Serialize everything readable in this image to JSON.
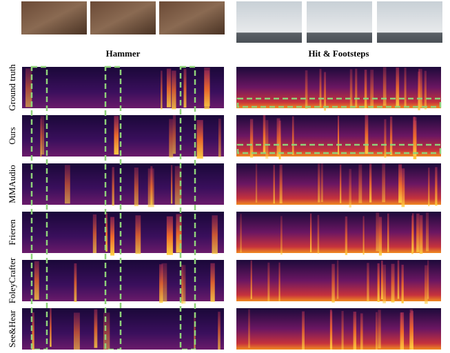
{
  "figure": {
    "columns": [
      {
        "title": "Hammer"
      },
      {
        "title": "Hit & Footsteps"
      }
    ],
    "rows": [
      {
        "label": "Ground truth"
      },
      {
        "label": "Ours"
      },
      {
        "label": "MMAudio"
      },
      {
        "label": "Frieren"
      },
      {
        "label": "FoleyCrafter"
      },
      {
        "label": "See&Hear"
      }
    ]
  }
}
